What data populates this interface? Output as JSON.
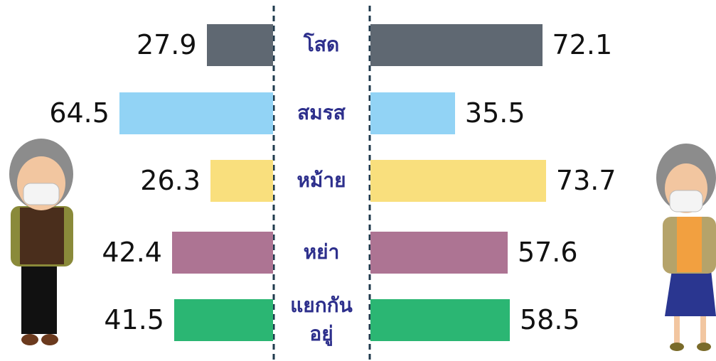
{
  "chart_data": {
    "type": "bar",
    "categories": [
      "โสด",
      "สมรส",
      "หม้าย",
      "หย่า",
      "แยกกันอยู่"
    ],
    "colors": [
      "#5f6872",
      "#92d3f5",
      "#f9df7d",
      "#ad7493",
      "#2bb673"
    ],
    "series": [
      {
        "values": [
          27.9,
          64.5,
          26.3,
          42.4,
          41.5
        ]
      },
      {
        "values": [
          72.1,
          35.5,
          73.7,
          57.6,
          58.5
        ]
      }
    ]
  }
}
